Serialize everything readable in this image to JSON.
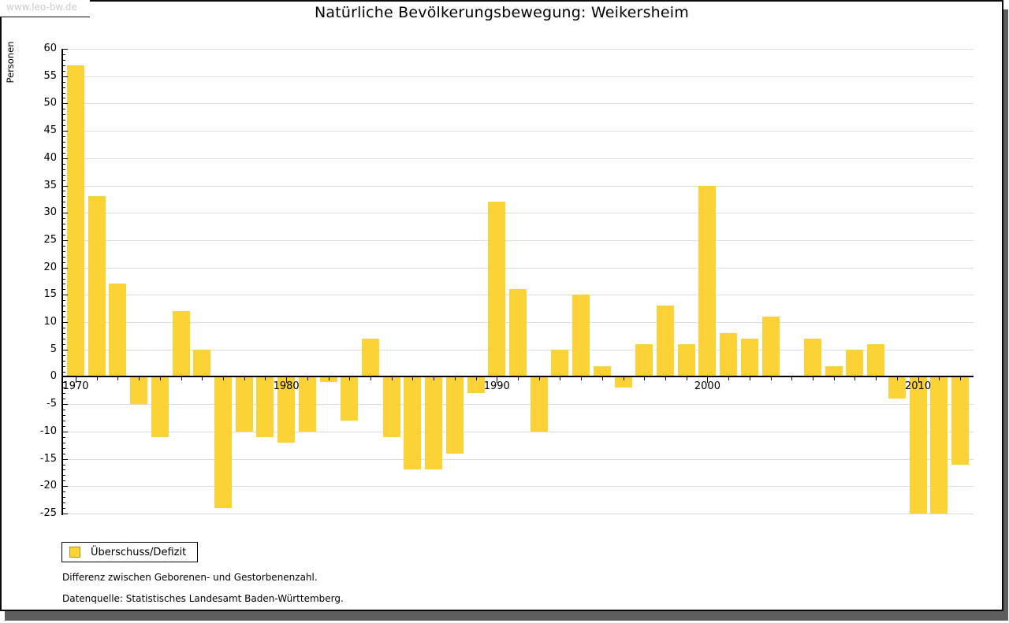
{
  "watermark": "www.leo-bw.de",
  "header": {
    "title": "Natürliche Bevölkerungsbewegung: Weikersheim"
  },
  "legend": {
    "label": "Überschuss/Defizit"
  },
  "footnotes": {
    "line1": "Differenz zwischen Geborenen- und Gestorbenenzahl.",
    "line2": "Datenquelle: Statistisches Landesamt Baden-Württemberg."
  },
  "colors": {
    "bar": "#FBD336",
    "legend_swatch_border": "#AE9A14",
    "grid": "#DCDCDC",
    "axis": "#000000",
    "watermark_text": "#CCCCCC",
    "shadow": "#5E5E5E"
  },
  "chart_data": {
    "type": "bar",
    "title": "Natürliche Bevölkerungsbewegung: Weikersheim",
    "xlabel": "",
    "ylabel": "Personen",
    "ylim": [
      -25,
      60
    ],
    "ytick_major_step": 5,
    "ytick_minor_step": 1,
    "grid": true,
    "legend_position": "bottom-left",
    "series_name": "Überschuss/Defizit",
    "categories": [
      1970,
      1971,
      1972,
      1973,
      1974,
      1975,
      1976,
      1977,
      1978,
      1979,
      1980,
      1981,
      1982,
      1983,
      1984,
      1985,
      1986,
      1987,
      1988,
      1989,
      1990,
      1991,
      1992,
      1993,
      1994,
      1995,
      1996,
      1997,
      1998,
      1999,
      2000,
      2001,
      2002,
      2003,
      2004,
      2005,
      2006,
      2007,
      2008,
      2009,
      2010,
      2011,
      2012
    ],
    "values": [
      57,
      33,
      17,
      -5,
      -11,
      12,
      5,
      -24,
      -10,
      -11,
      -12,
      -10,
      -1,
      -8,
      7,
      -11,
      -17,
      -17,
      -14,
      -3,
      32,
      16,
      -10,
      5,
      15,
      2,
      -2,
      6,
      13,
      6,
      35,
      8,
      7,
      11,
      0,
      7,
      2,
      5,
      6,
      -4,
      -25,
      -25,
      -16
    ],
    "x_decade_labels": [
      1970,
      1980,
      1990,
      2000,
      2010
    ]
  }
}
